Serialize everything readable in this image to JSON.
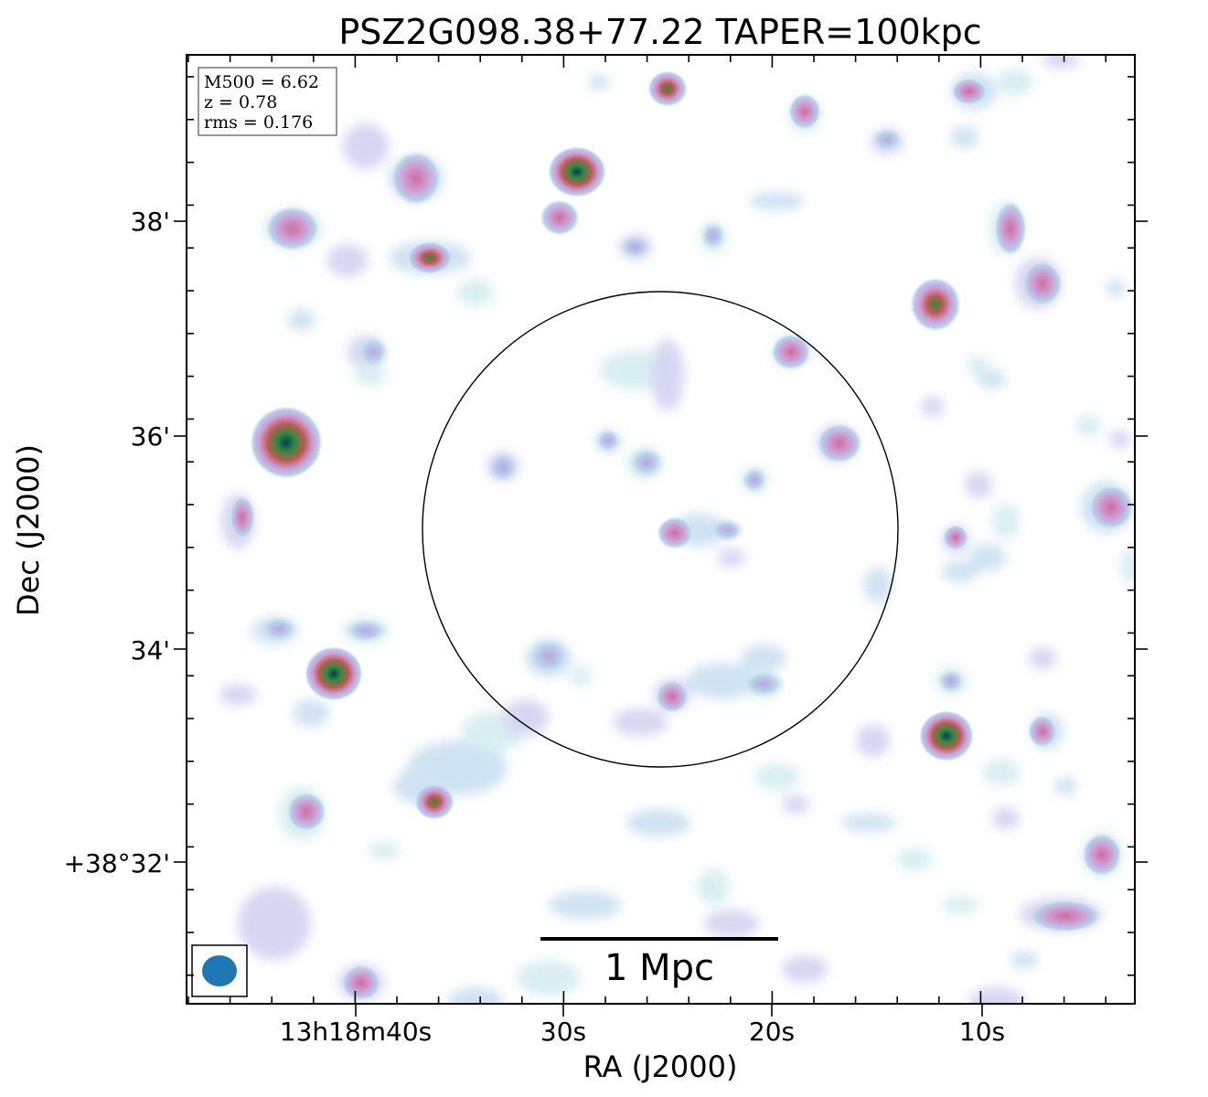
{
  "title": "PSZ2G098.38+77.22 TAPER=100kpc",
  "axes": {
    "xlabel": "RA (J2000)",
    "ylabel": "Dec (J2000)",
    "x_ticks": [
      "13h18m40s",
      "30s",
      "20s",
      "10s"
    ],
    "y_ticks": [
      "38'",
      "36'",
      "34'",
      "+38°32'"
    ]
  },
  "infobox": {
    "lines": [
      "M500 = 6.62",
      "z = 0.78",
      "rms = 0.176"
    ]
  },
  "scalebar": {
    "label": "1 Mpc"
  },
  "colors": {
    "beam": "#1f77b4",
    "frame": "#000000",
    "colormap": [
      "#d6eeef",
      "#b8cfeb",
      "#cf9bd2",
      "#cd6f9a",
      "#bb5a52",
      "#2e8b40",
      "#0b3b53"
    ]
  }
}
